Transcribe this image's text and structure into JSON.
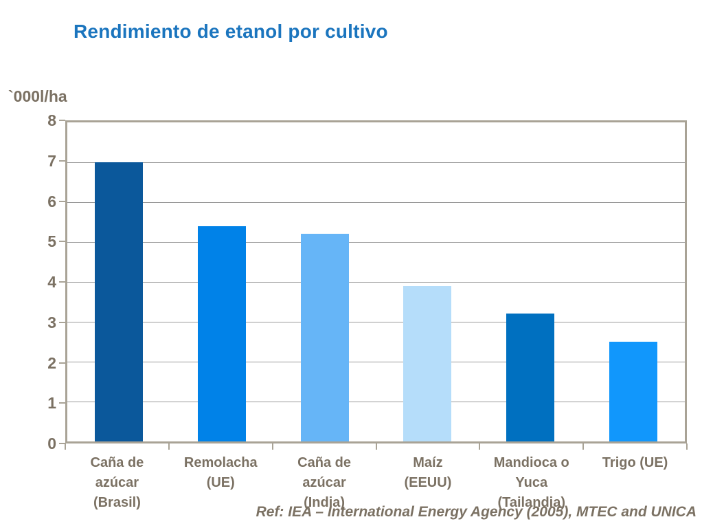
{
  "title": "Rendimiento de etanol por cultivo",
  "colors": {
    "title": "#1B75BE",
    "text": "#7B7163",
    "axis": "#A9A396",
    "gridline": "#999999",
    "background": "#FFFFFF"
  },
  "chart_data": {
    "type": "bar",
    "title": "Rendimiento de etanol por cultivo",
    "xlabel": "",
    "ylabel": "`000l/ha",
    "ylim": [
      0,
      8
    ],
    "ytick_interval": 1,
    "yticks": [
      0,
      1,
      2,
      3,
      4,
      5,
      6,
      7,
      8
    ],
    "grid": true,
    "legend": "none",
    "categories": [
      "Caña de azúcar (Brasil)",
      "Remolacha (UE)",
      "Caña de azúcar (India)",
      "Maíz (EEUU)",
      "Mandioca o Yuca (Tailandia)",
      "Trigo (UE)"
    ],
    "category_label_lines": [
      [
        "Caña de",
        "azúcar",
        "(Brasil)"
      ],
      [
        "Remolacha",
        "(UE)"
      ],
      [
        "Caña de",
        "azúcar",
        "(India)"
      ],
      [
        "Maíz",
        "(EEUU)"
      ],
      [
        "Mandioca o",
        "Yuca",
        "(Tailandia)"
      ],
      [
        "Trigo (UE)"
      ]
    ],
    "values": [
      7,
      5.4,
      5.2,
      3.9,
      3.2,
      2.5
    ],
    "bar_colors": [
      "#0B589B",
      "#0082E8",
      "#66B5F7",
      "#B5DDFA",
      "#0070C0",
      "#1197FC"
    ]
  },
  "footer": {
    "reference": "Ref: IEA – International Energy Agency (2005), MTEC and UNICA"
  }
}
